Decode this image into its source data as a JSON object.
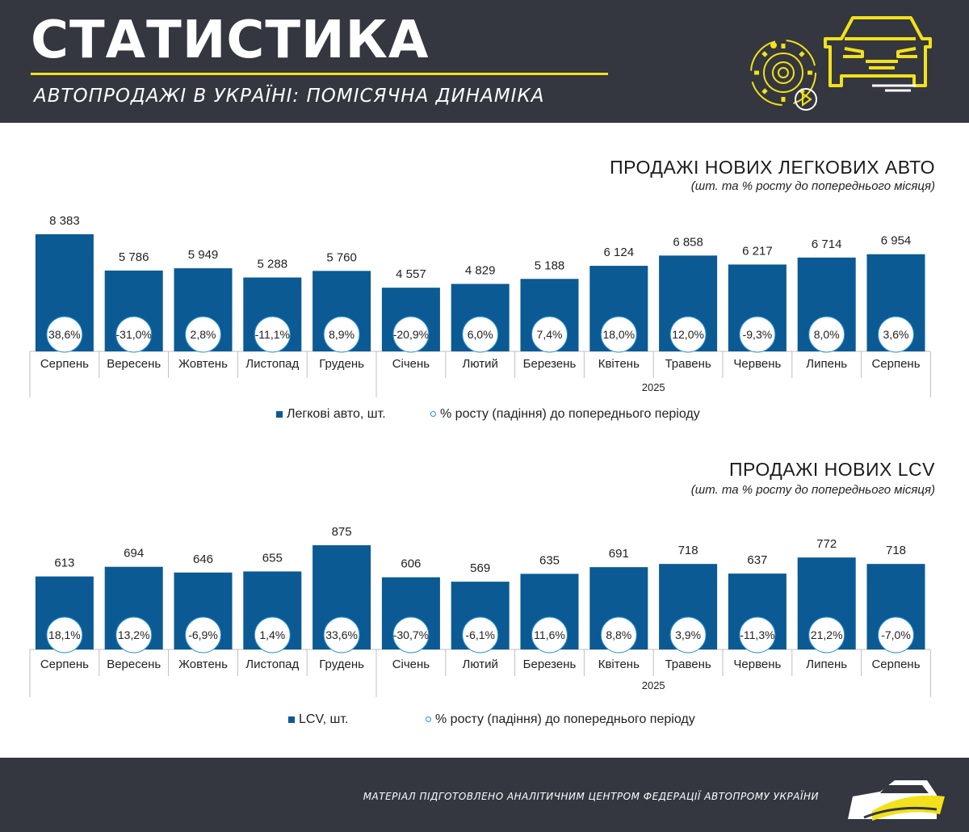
{
  "header": {
    "title": "СТАТИСТИКА",
    "subtitle": "АВТОПРОДАЖІ В УКРАЇНІ: ПОМІСЯЧНА ДИНАМІКА"
  },
  "icons": [
    "gear-play-icon",
    "car-icon",
    "car-logo-icon"
  ],
  "colors": {
    "bar": "#0b5a93",
    "circle_border": "#2a8fd6",
    "accent": "#f2e11b",
    "header_bg": "#34373f"
  },
  "charts": [
    {
      "title": "ПРОДАЖІ НОВИХ ЛЕГКОВИХ АВТО",
      "subtitle": "(шт. та % росту до попереднього місяця)",
      "legend_bar": "Легкові авто, шт.",
      "legend_circle": "% росту  (падіння) до попереднього періоду"
    },
    {
      "title": "ПРОДАЖІ НОВИХ  LCV",
      "subtitle": "(шт. та % росту до попереднього місяця)",
      "legend_bar": "LCV, шт.",
      "legend_circle": "% росту  (падіння) до попереднього періоду"
    }
  ],
  "chart_data": [
    {
      "type": "bar",
      "title": "ПРОДАЖІ НОВИХ ЛЕГКОВИХ АВТО",
      "categories": [
        "Серпень",
        "Вересень",
        "Жовтень",
        "Листопад",
        "Грудень",
        "Січень",
        "Лютий",
        "Березень",
        "Квітень",
        "Травень",
        "Червень",
        "Липень",
        "Серпень"
      ],
      "group_label": "2025",
      "series": [
        {
          "name": "Легкові авто, шт.",
          "values": [
            8383,
            5786,
            5949,
            5288,
            5760,
            4557,
            4829,
            5188,
            6124,
            6858,
            6217,
            6714,
            6954
          ]
        }
      ],
      "value_labels": [
        "8 383",
        "5 786",
        "5 949",
        "5 288",
        "5 760",
        "4 557",
        "4 829",
        "5 188",
        "6 124",
        "6 858",
        "6 217",
        "6 714",
        "6 954"
      ],
      "growth_labels": [
        "38,6%",
        "-31,0%",
        "2,8%",
        "-11,1%",
        "8,9%",
        "-20,9%",
        "6,0%",
        "7,4%",
        "18,0%",
        "12,0%",
        "-9,3%",
        "8,0%",
        "3,6%"
      ],
      "growth_name": "% росту  (падіння) до попереднього періоду",
      "legend": "bottom"
    },
    {
      "type": "bar",
      "title": "ПРОДАЖІ НОВИХ  LCV",
      "categories": [
        "Серпень",
        "Вересень",
        "Жовтень",
        "Листопад",
        "Грудень",
        "Січень",
        "Лютий",
        "Березень",
        "Квітень",
        "Травень",
        "Червень",
        "Липень",
        "Серпень"
      ],
      "group_label": "2025",
      "series": [
        {
          "name": "LCV, шт.",
          "values": [
            613,
            694,
            646,
            655,
            875,
            606,
            569,
            635,
            691,
            718,
            637,
            772,
            718
          ]
        }
      ],
      "value_labels": [
        "613",
        "694",
        "646",
        "655",
        "875",
        "606",
        "569",
        "635",
        "691",
        "718",
        "637",
        "772",
        "718"
      ],
      "growth_labels": [
        "18,1%",
        "13,2%",
        "-6,9%",
        "1,4%",
        "33,6%",
        "-30,7%",
        "-6,1%",
        "11,6%",
        "8,8%",
        "3,9%",
        "-11,3%",
        "21,2%",
        "-7,0%"
      ],
      "growth_name": "% росту  (падіння) до попереднього періоду",
      "legend": "bottom"
    }
  ],
  "footer": {
    "text": "МАТЕРІАЛ ПІДГОТОВЛЕНО АНАЛІТИЧНИМ ЦЕНТРОМ ФЕДЕРАЦІЇ АВТОПРОМУ УКРАЇНИ"
  }
}
